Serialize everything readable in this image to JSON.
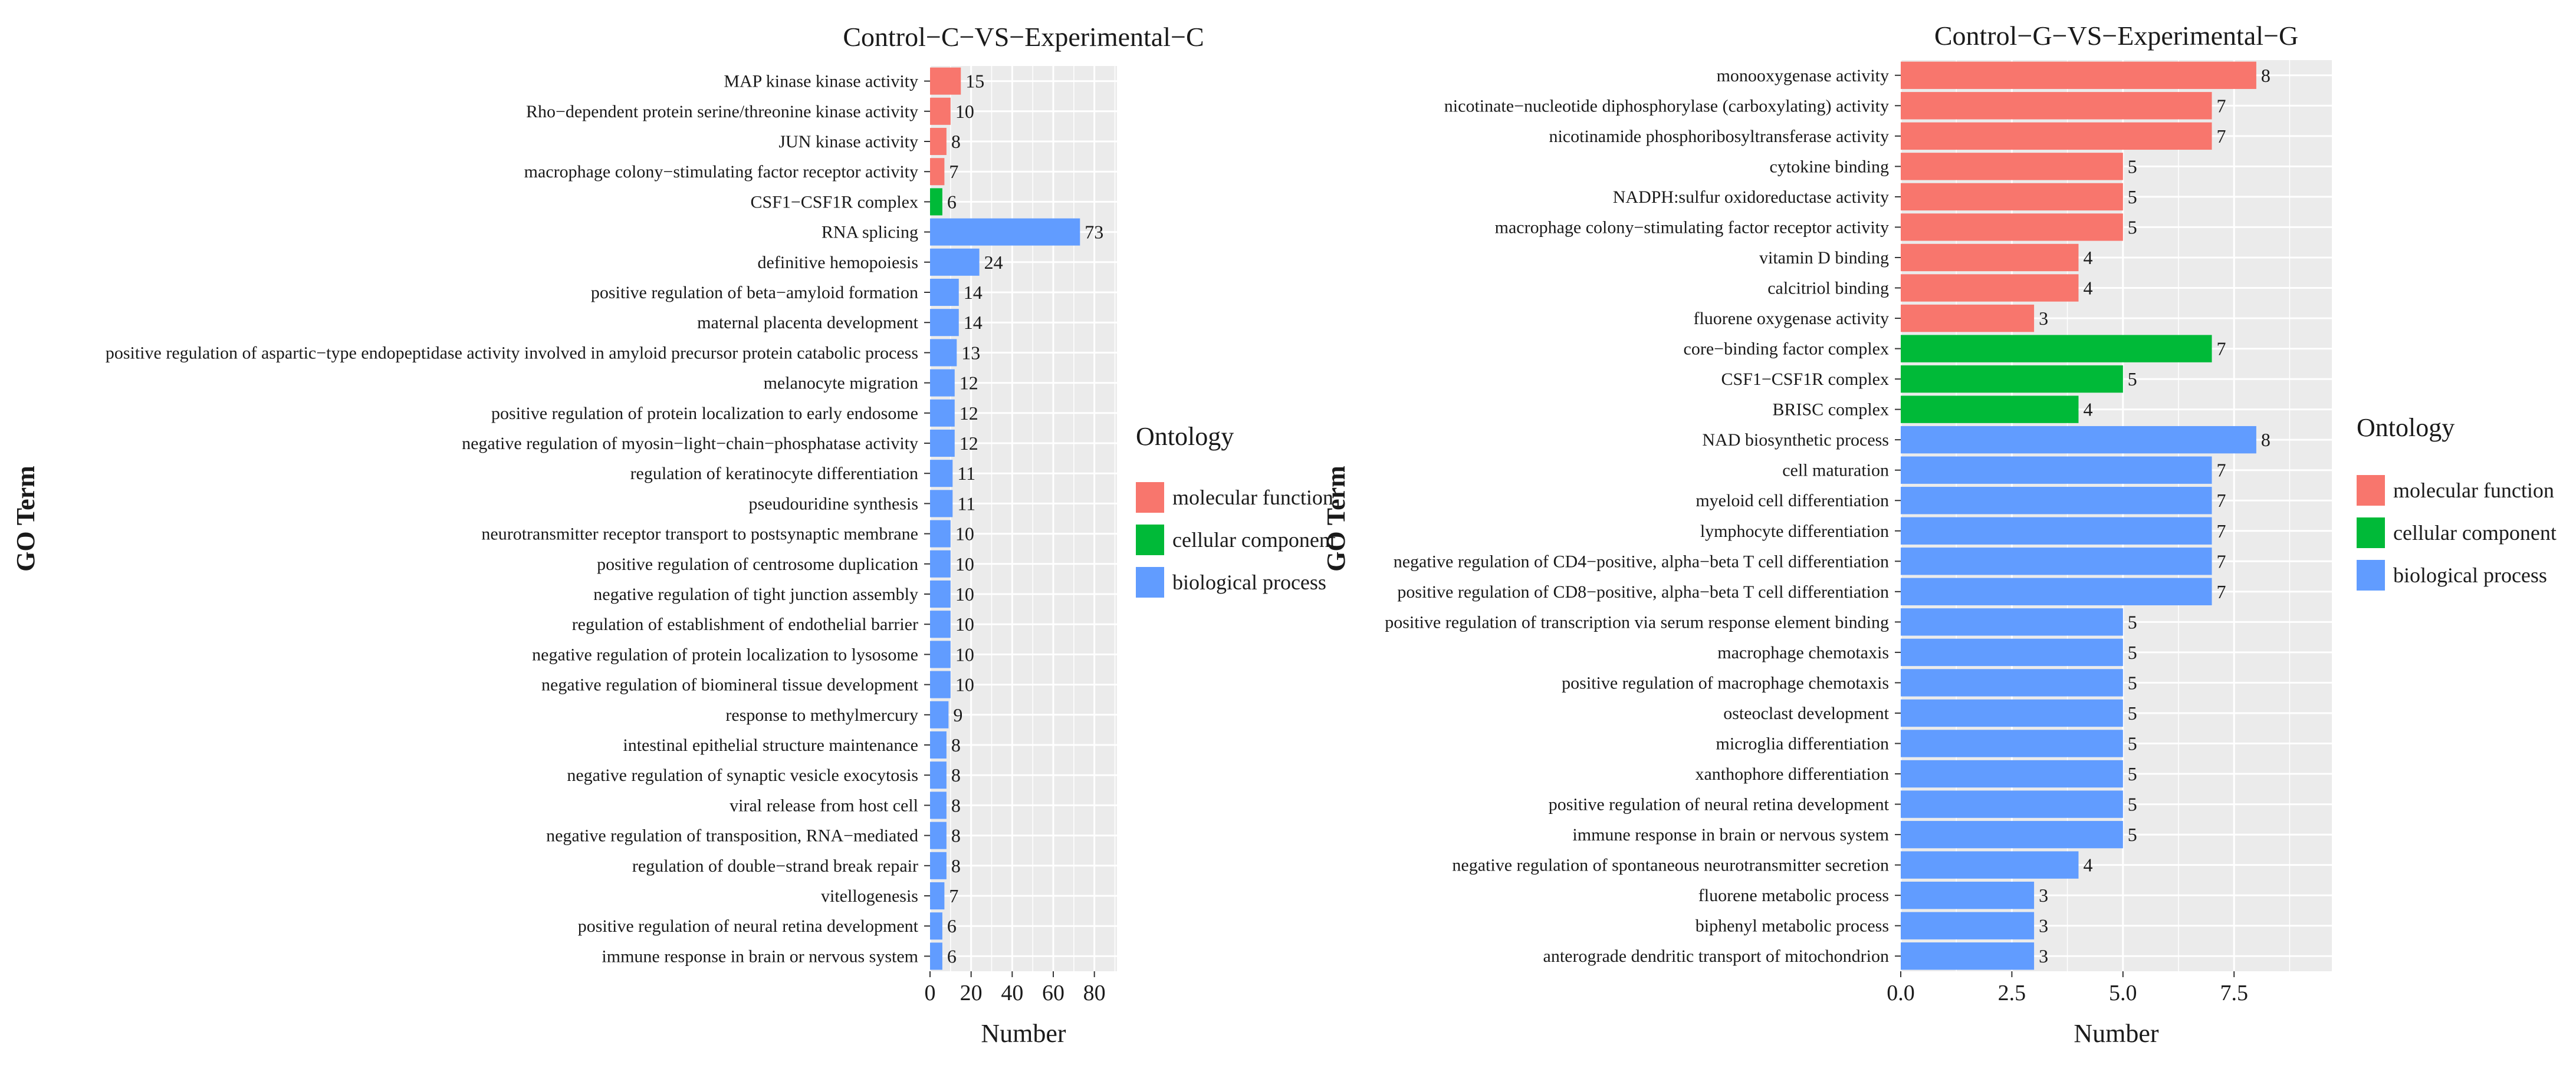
{
  "colors": {
    "molecular function": "#F8766D",
    "cellular component": "#00BA38",
    "biological process": "#619CFF",
    "panel_bg": "#EBEBEB",
    "grid": "#FFFFFF"
  },
  "ylabel": "GO Term",
  "legend": {
    "title": "Ontology",
    "items": [
      "molecular function",
      "cellular component",
      "biological process"
    ]
  },
  "chart_data": [
    {
      "type": "bar",
      "orientation": "horizontal",
      "title": "Control−C−VS−Experimental−C",
      "xlabel": "Number",
      "ylabel": "GO Term",
      "xlim": [
        0,
        91
      ],
      "xticks": [
        0,
        20,
        40,
        60,
        80
      ],
      "xtick_labels": [
        "0",
        "20",
        "40",
        "60",
        "80"
      ],
      "legend_position": "right",
      "categories": [
        "MAP kinase kinase activity",
        "Rho−dependent protein serine/threonine kinase activity",
        "JUN kinase activity",
        "macrophage colony−stimulating factor receptor activity",
        "CSF1−CSF1R complex",
        "RNA splicing",
        "definitive hemopoiesis",
        "positive regulation of beta−amyloid formation",
        "maternal placenta development",
        "positive regulation of aspartic−type endopeptidase activity involved in amyloid precursor protein catabolic process",
        "melanocyte migration",
        "positive regulation of protein localization to early endosome",
        "negative regulation of myosin−light−chain−phosphatase activity",
        "regulation of keratinocyte differentiation",
        "pseudouridine synthesis",
        "neurotransmitter receptor transport to postsynaptic membrane",
        "positive regulation of centrosome duplication",
        "negative regulation of tight junction assembly",
        "regulation of establishment of endothelial barrier",
        "negative regulation of protein localization to lysosome",
        "negative regulation of biomineral tissue development",
        "response to methylmercury",
        "intestinal epithelial structure maintenance",
        "negative regulation of synaptic vesicle exocytosis",
        "viral release from host cell",
        "negative regulation of transposition, RNA−mediated",
        "regulation of double−strand break repair",
        "vitellogenesis",
        "positive regulation of neural retina development",
        "immune response in brain or nervous system"
      ],
      "values": [
        15,
        10,
        8,
        7,
        6,
        73,
        24,
        14,
        14,
        13,
        12,
        12,
        12,
        11,
        11,
        10,
        10,
        10,
        10,
        10,
        10,
        9,
        8,
        8,
        8,
        8,
        8,
        7,
        6,
        6
      ],
      "ontology": [
        "molecular function",
        "molecular function",
        "molecular function",
        "molecular function",
        "cellular component",
        "biological process",
        "biological process",
        "biological process",
        "biological process",
        "biological process",
        "biological process",
        "biological process",
        "biological process",
        "biological process",
        "biological process",
        "biological process",
        "biological process",
        "biological process",
        "biological process",
        "biological process",
        "biological process",
        "biological process",
        "biological process",
        "biological process",
        "biological process",
        "biological process",
        "biological process",
        "biological process",
        "biological process",
        "biological process"
      ]
    },
    {
      "type": "bar",
      "orientation": "horizontal",
      "title": "Control−G−VS−Experimental−G",
      "xlabel": "Number",
      "ylabel": "GO Term",
      "xlim": [
        0,
        9.7
      ],
      "xticks": [
        0,
        2.5,
        5,
        7.5
      ],
      "xtick_labels": [
        "0.0",
        "2.5",
        "5.0",
        "7.5"
      ],
      "legend_position": "right",
      "categories": [
        "monooxygenase activity",
        "nicotinate−nucleotide diphosphorylase (carboxylating) activity",
        "nicotinamide phosphoribosyltransferase activity",
        "cytokine binding",
        "NADPH:sulfur oxidoreductase activity",
        "macrophage colony−stimulating factor receptor activity",
        "vitamin D binding",
        "calcitriol binding",
        "fluorene oxygenase activity",
        "core−binding factor complex",
        "CSF1−CSF1R complex",
        "BRISC complex",
        "NAD biosynthetic process",
        "cell maturation",
        "myeloid cell differentiation",
        "lymphocyte differentiation",
        "negative regulation of CD4−positive, alpha−beta T cell differentiation",
        "positive regulation of CD8−positive, alpha−beta T cell differentiation",
        "positive regulation of transcription via serum response element binding",
        "macrophage chemotaxis",
        "positive regulation of macrophage chemotaxis",
        "osteoclast development",
        "microglia differentiation",
        "xanthophore differentiation",
        "positive regulation of neural retina development",
        "immune response in brain or nervous system",
        "negative regulation of spontaneous neurotransmitter secretion",
        "fluorene metabolic process",
        "biphenyl metabolic process",
        "anterograde dendritic transport of mitochondrion"
      ],
      "values": [
        8,
        7,
        7,
        5,
        5,
        5,
        4,
        4,
        3,
        7,
        5,
        4,
        8,
        7,
        7,
        7,
        7,
        7,
        5,
        5,
        5,
        5,
        5,
        5,
        5,
        5,
        4,
        3,
        3,
        3
      ],
      "ontology": [
        "molecular function",
        "molecular function",
        "molecular function",
        "molecular function",
        "molecular function",
        "molecular function",
        "molecular function",
        "molecular function",
        "molecular function",
        "cellular component",
        "cellular component",
        "cellular component",
        "biological process",
        "biological process",
        "biological process",
        "biological process",
        "biological process",
        "biological process",
        "biological process",
        "biological process",
        "biological process",
        "biological process",
        "biological process",
        "biological process",
        "biological process",
        "biological process",
        "biological process",
        "biological process",
        "biological process",
        "biological process"
      ]
    }
  ]
}
